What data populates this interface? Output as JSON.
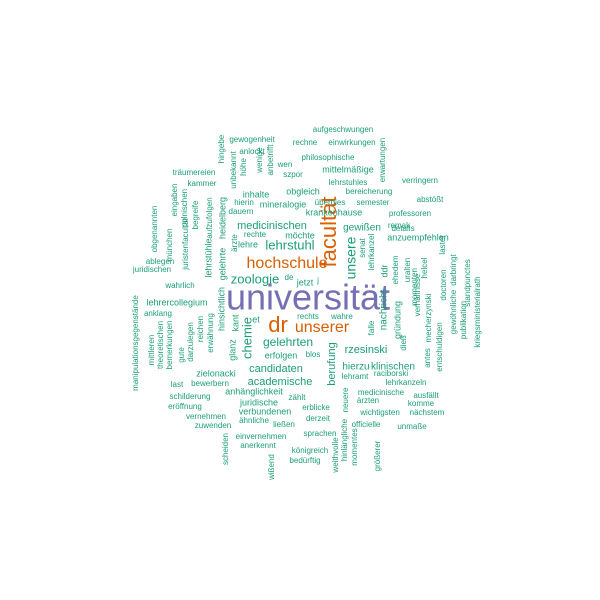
{
  "palette": {
    "primary": "#7570b3",
    "accent": "#d95f02",
    "common": "#1b9e77"
  },
  "words": [
    {
      "text": "universität",
      "weight": 100,
      "color": "primary"
    },
    {
      "text": "dr",
      "weight": 72,
      "color": "accent"
    },
    {
      "text": "facultät",
      "weight": 70,
      "color": "accent"
    },
    {
      "text": "unserer",
      "weight": 60,
      "color": "accent"
    },
    {
      "text": "hochschule",
      "weight": 60,
      "color": "accent"
    },
    {
      "text": "unsere",
      "weight": 48,
      "color": "common"
    },
    {
      "text": "zoologie",
      "weight": 40,
      "color": "common"
    },
    {
      "text": "lehrstuhl",
      "weight": 40,
      "color": "common"
    },
    {
      "text": "chemie",
      "weight": 38,
      "color": "common"
    },
    {
      "text": "gelehrten",
      "weight": 38,
      "color": "common"
    },
    {
      "text": "medicinischen",
      "weight": 36,
      "color": "common"
    },
    {
      "text": "rzesinski",
      "weight": 34,
      "color": "common"
    },
    {
      "text": "academische",
      "weight": 34,
      "color": "common"
    },
    {
      "text": "berufung",
      "weight": 32,
      "color": "common"
    },
    {
      "text": "candidaten",
      "weight": 30,
      "color": "common"
    },
    {
      "text": "gewißen",
      "weight": 28,
      "color": "common"
    },
    {
      "text": "nachricht",
      "weight": 26,
      "color": "common"
    },
    {
      "text": "zielonacki",
      "weight": 24,
      "color": "common"
    },
    {
      "text": "hinsichtlich",
      "weight": 24,
      "color": "common"
    },
    {
      "text": "lehrstühle",
      "weight": 24,
      "color": "common"
    },
    {
      "text": "hierzu",
      "weight": 24,
      "color": "common"
    },
    {
      "text": "klinischen",
      "weight": 24,
      "color": "common"
    },
    {
      "text": "erfolgen",
      "weight": 24,
      "color": "common"
    },
    {
      "text": "gründung",
      "weight": 24,
      "color": "common"
    },
    {
      "text": "ddr",
      "weight": 24,
      "color": "common"
    },
    {
      "text": "glanz",
      "weight": 22,
      "color": "common"
    },
    {
      "text": "krankenhause",
      "weight": 22,
      "color": "common"
    },
    {
      "text": "mittelmäßige",
      "weight": 22,
      "color": "common"
    },
    {
      "text": "mineralogie",
      "weight": 20,
      "color": "common"
    },
    {
      "text": "lehrercollegium",
      "weight": 20,
      "color": "common"
    },
    {
      "text": "verbundenen",
      "weight": 20,
      "color": "common"
    },
    {
      "text": "anhänglichkeit",
      "weight": 20,
      "color": "common"
    },
    {
      "text": "juridische",
      "weight": 20,
      "color": "common"
    },
    {
      "text": "medicinische",
      "weight": 20,
      "color": "common"
    },
    {
      "text": "raciborski",
      "weight": 20,
      "color": "common"
    },
    {
      "text": "gelehrte",
      "weight": 20,
      "color": "common"
    },
    {
      "text": "heidelberg",
      "weight": 20,
      "color": "common"
    },
    {
      "text": "obgleich",
      "weight": 20,
      "color": "common"
    },
    {
      "text": "inhalte",
      "weight": 20,
      "color": "common"
    },
    {
      "text": "anzuempfehlen",
      "weight": 20,
      "color": "common"
    },
    {
      "text": "lehrkanzel",
      "weight": 20,
      "color": "common"
    },
    {
      "text": "ehedem",
      "weight": 20,
      "color": "common"
    },
    {
      "text": "senat",
      "weight": 20,
      "color": "common"
    },
    {
      "text": "falle",
      "weight": 20,
      "color": "common"
    },
    {
      "text": "dieß",
      "weight": 20,
      "color": "common"
    },
    {
      "text": "kant",
      "weight": 20,
      "color": "common"
    },
    {
      "text": "et",
      "weight": 20,
      "color": "common"
    },
    {
      "text": "jetzt",
      "weight": 18,
      "color": "common"
    },
    {
      "text": "möchte",
      "weight": 18,
      "color": "common"
    },
    {
      "text": "lehre",
      "weight": 18,
      "color": "common"
    },
    {
      "text": "ärzte",
      "weight": 18,
      "color": "common"
    },
    {
      "text": "rechte",
      "weight": 18,
      "color": "common"
    },
    {
      "text": "bewerbern",
      "weight": 16,
      "color": "common"
    },
    {
      "text": "schilderung",
      "weight": 16,
      "color": "common"
    },
    {
      "text": "zählt",
      "weight": 16,
      "color": "common"
    },
    {
      "text": "erblicke",
      "weight": 16,
      "color": "common"
    },
    {
      "text": "derzeit",
      "weight": 16,
      "color": "common"
    },
    {
      "text": "sprachen",
      "weight": 16,
      "color": "common"
    },
    {
      "text": "königreich",
      "weight": 16,
      "color": "common"
    },
    {
      "text": "bedürftig",
      "weight": 16,
      "color": "common"
    },
    {
      "text": "einvernehmen",
      "weight": 16,
      "color": "common"
    },
    {
      "text": "anerkennt",
      "weight": 16,
      "color": "common"
    },
    {
      "text": "ähnliche",
      "weight": 16,
      "color": "common"
    },
    {
      "text": "ließen",
      "weight": 16,
      "color": "common"
    },
    {
      "text": "vernehmen",
      "weight": 16,
      "color": "common"
    },
    {
      "text": "zuwenden",
      "weight": 16,
      "color": "common"
    },
    {
      "text": "eröffnung",
      "weight": 16,
      "color": "common"
    },
    {
      "text": "officielle",
      "weight": 16,
      "color": "common"
    },
    {
      "text": "unmaße",
      "weight": 16,
      "color": "common"
    },
    {
      "text": "wichtigsten",
      "weight": 16,
      "color": "common"
    },
    {
      "text": "nächstem",
      "weight": 16,
      "color": "common"
    },
    {
      "text": "komme",
      "weight": 16,
      "color": "common"
    },
    {
      "text": "ärzten",
      "weight": 16,
      "color": "common"
    },
    {
      "text": "ausfällt",
      "weight": 16,
      "color": "common"
    },
    {
      "text": "lehramt",
      "weight": 16,
      "color": "common"
    },
    {
      "text": "lehrkanzeln",
      "weight": 16,
      "color": "common"
    },
    {
      "text": "blos",
      "weight": 16,
      "color": "common"
    },
    {
      "text": "rechts",
      "weight": 16,
      "color": "common"
    },
    {
      "text": "wahre",
      "weight": 16,
      "color": "common"
    },
    {
      "text": "last",
      "weight": 16,
      "color": "common"
    },
    {
      "text": "gute",
      "weight": 16,
      "color": "common"
    },
    {
      "text": "reichen",
      "weight": 16,
      "color": "common"
    },
    {
      "text": "erwähnung",
      "weight": 16,
      "color": "common"
    },
    {
      "text": "wahrlich",
      "weight": 16,
      "color": "common"
    },
    {
      "text": "darzulegen",
      "weight": 16,
      "color": "common"
    },
    {
      "text": "bemerkungen",
      "weight": 16,
      "color": "common"
    },
    {
      "text": "theoretischen",
      "weight": 16,
      "color": "common"
    },
    {
      "text": "mittleren",
      "weight": 16,
      "color": "common"
    },
    {
      "text": "anklang",
      "weight": 16,
      "color": "common"
    },
    {
      "text": "manipulationsgegenstände",
      "weight": 16,
      "color": "common"
    },
    {
      "text": "juridischen",
      "weight": 16,
      "color": "common"
    },
    {
      "text": "ablegen",
      "weight": 16,
      "color": "common"
    },
    {
      "text": "obgenannten",
      "weight": 16,
      "color": "common"
    },
    {
      "text": "münchen",
      "weight": 16,
      "color": "common"
    },
    {
      "text": "eingaben",
      "weight": 16,
      "color": "common"
    },
    {
      "text": "juristenfacultät",
      "weight": 16,
      "color": "common"
    },
    {
      "text": "polnischen",
      "weight": 16,
      "color": "common"
    },
    {
      "text": "begreife",
      "weight": 16,
      "color": "common"
    },
    {
      "text": "aufzufolgen",
      "weight": 16,
      "color": "common"
    },
    {
      "text": "kammer",
      "weight": 16,
      "color": "common"
    },
    {
      "text": "träumereien",
      "weight": 16,
      "color": "common"
    },
    {
      "text": "hingebe",
      "weight": 16,
      "color": "common"
    },
    {
      "text": "gewogenheit",
      "weight": 16,
      "color": "common"
    },
    {
      "text": "unbekannt",
      "weight": 16,
      "color": "common"
    },
    {
      "text": "anlockt",
      "weight": 16,
      "color": "common"
    },
    {
      "text": "höhe",
      "weight": 16,
      "color": "common"
    },
    {
      "text": "wenige",
      "weight": 16,
      "color": "common"
    },
    {
      "text": "anbetrifft",
      "weight": 16,
      "color": "common"
    },
    {
      "text": "rechne",
      "weight": 16,
      "color": "common"
    },
    {
      "text": "einwirkungen",
      "weight": 16,
      "color": "common"
    },
    {
      "text": "aufgeschwungen",
      "weight": 16,
      "color": "common"
    },
    {
      "text": "philosophische",
      "weight": 16,
      "color": "common"
    },
    {
      "text": "wen",
      "weight": 16,
      "color": "common"
    },
    {
      "text": "szpor",
      "weight": 16,
      "color": "common"
    },
    {
      "text": "erwartungen",
      "weight": 16,
      "color": "common"
    },
    {
      "text": "bereicherung",
      "weight": 16,
      "color": "common"
    },
    {
      "text": "lehrstuhles",
      "weight": 16,
      "color": "common"
    },
    {
      "text": "verringern",
      "weight": 16,
      "color": "common"
    },
    {
      "text": "abstößt",
      "weight": 16,
      "color": "common"
    },
    {
      "text": "überdies",
      "weight": 16,
      "color": "common"
    },
    {
      "text": "semester",
      "weight": 16,
      "color": "common"
    },
    {
      "text": "professoren",
      "weight": 16,
      "color": "common"
    },
    {
      "text": "hierin",
      "weight": 16,
      "color": "common"
    },
    {
      "text": "dauern",
      "weight": 16,
      "color": "common"
    },
    {
      "text": "details",
      "weight": 16,
      "color": "common"
    },
    {
      "text": "remak",
      "weight": 16,
      "color": "common"
    },
    {
      "text": "lastet",
      "weight": 16,
      "color": "common"
    },
    {
      "text": "helcel",
      "weight": 16,
      "color": "common"
    },
    {
      "text": "doctoren",
      "weight": 16,
      "color": "common"
    },
    {
      "text": "darbringt",
      "weight": 16,
      "color": "common"
    },
    {
      "text": "gewöhnliche",
      "weight": 16,
      "color": "common"
    },
    {
      "text": "publikation",
      "weight": 16,
      "color": "common"
    },
    {
      "text": "standpunctes",
      "weight": 16,
      "color": "common"
    },
    {
      "text": "kriegsministerialrath",
      "weight": 16,
      "color": "common"
    },
    {
      "text": "entschuldigen",
      "weight": 16,
      "color": "common"
    },
    {
      "text": "mecherzynski",
      "weight": 16,
      "color": "common"
    },
    {
      "text": "antes",
      "weight": 16,
      "color": "common"
    },
    {
      "text": "verhältnisse",
      "weight": 16,
      "color": "common"
    },
    {
      "text": "uralten",
      "weight": 16,
      "color": "common"
    },
    {
      "text": "momenten",
      "weight": 16,
      "color": "common"
    },
    {
      "text": "neuere",
      "weight": 16,
      "color": "common"
    },
    {
      "text": "hinlängliche",
      "weight": 16,
      "color": "common"
    },
    {
      "text": "weithvolle",
      "weight": 16,
      "color": "common"
    },
    {
      "text": "momentes",
      "weight": 16,
      "color": "common"
    },
    {
      "text": "größerer",
      "weight": 16,
      "color": "common"
    },
    {
      "text": "wißend",
      "weight": 16,
      "color": "common"
    },
    {
      "text": "scheiden",
      "weight": 16,
      "color": "common"
    },
    {
      "text": "de",
      "weight": 16,
      "color": "common"
    },
    {
      "text": "j",
      "weight": 16,
      "color": "common"
    }
  ]
}
